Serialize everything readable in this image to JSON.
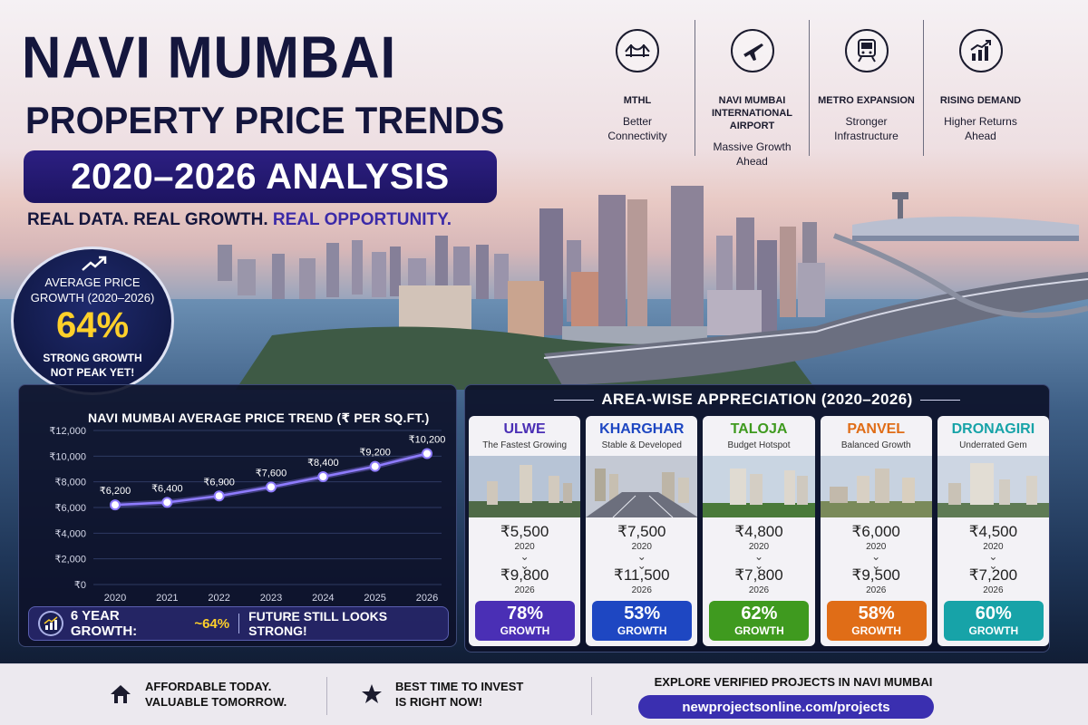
{
  "header": {
    "title_line1": "NAVI MUMBAI",
    "title_line2": "PROPERTY PRICE TRENDS",
    "title_line3": "2020–2026 ANALYSIS",
    "tagline_main": "REAL DATA. REAL GROWTH.",
    "tagline_accent": "REAL OPPORTUNITY."
  },
  "growth_badge": {
    "label_line1": "AVERAGE PRICE",
    "label_line2": "GROWTH (2020–2026)",
    "value": "64%",
    "sub_line1": "STRONG GROWTH",
    "sub_line2": "NOT PEAK YET!",
    "icon": "trend-up-arrow-icon"
  },
  "features": [
    {
      "title": "MTHL",
      "title_line2": "",
      "sub_line1": "Better",
      "sub_line2": "Connectivity",
      "icon": "bridge-icon"
    },
    {
      "title": "NAVI MUMBAI",
      "title_line2": "INTERNATIONAL AIRPORT",
      "sub_line1": "Massive Growth",
      "sub_line2": "Ahead",
      "icon": "airplane-icon"
    },
    {
      "title": "METRO EXPANSION",
      "title_line2": "",
      "sub_line1": "Stronger",
      "sub_line2": "Infrastructure",
      "icon": "metro-train-icon"
    },
    {
      "title": "RISING DEMAND",
      "title_line2": "",
      "sub_line1": "Higher Returns",
      "sub_line2": "Ahead",
      "icon": "rising-bar-chart-icon"
    }
  ],
  "chart_data": {
    "type": "line",
    "title": "NAVI MUMBAI AVERAGE PRICE TREND (₹ PER SQ.FT.)",
    "x": [
      "2020",
      "2021",
      "2022",
      "2023",
      "2024",
      "2025",
      "2026"
    ],
    "values": [
      6200,
      6400,
      6900,
      7600,
      8400,
      9200,
      10200
    ],
    "data_labels": [
      "₹6,200",
      "₹6,400",
      "₹6,900",
      "₹7,600",
      "₹8,400",
      "₹9,200",
      "₹10,200"
    ],
    "yticks": [
      0,
      2000,
      4000,
      6000,
      8000,
      10000,
      12000
    ],
    "ytick_labels": [
      "₹0",
      "₹2,000",
      "₹4,000",
      "₹6,000",
      "₹8,000",
      "₹10,000",
      "₹12,000"
    ],
    "ylim": [
      0,
      12000
    ],
    "grid": true,
    "line_color": "#8f7cff"
  },
  "chart_footer": {
    "label": "6 YEAR GROWTH:",
    "value": "~64%",
    "note": "FUTURE STILL LOOKS STRONG!",
    "icon": "growth-chart-icon"
  },
  "area_section": {
    "title": "AREA-WISE APPRECIATION (2020–2026)",
    "areas": [
      {
        "name": "ULWE",
        "subtitle": "The Fastest Growing",
        "price_2020": "₹5,500",
        "year1": "2020",
        "price_2026": "₹9,800",
        "year2": "2026",
        "growth": "78%",
        "growth_label": "GROWTH",
        "color": "#4a2fb5"
      },
      {
        "name": "KHARGHAR",
        "subtitle": "Stable & Developed",
        "price_2020": "₹7,500",
        "year1": "2020",
        "price_2026": "₹11,500",
        "year2": "2026",
        "growth": "53%",
        "growth_label": "GROWTH",
        "color": "#1e47c2"
      },
      {
        "name": "TALOJA",
        "subtitle": "Budget Hotspot",
        "price_2020": "₹4,800",
        "year1": "2020",
        "price_2026": "₹7,800",
        "year2": "2026",
        "growth": "62%",
        "growth_label": "GROWTH",
        "color": "#3f9a1f"
      },
      {
        "name": "PANVEL",
        "subtitle": "Balanced Growth",
        "price_2020": "₹6,000",
        "year1": "2020",
        "price_2026": "₹9,500",
        "year2": "2026",
        "growth": "58%",
        "growth_label": "GROWTH",
        "color": "#e06d17"
      },
      {
        "name": "DRONAGIRI",
        "subtitle": "Underrated Gem",
        "price_2020": "₹4,500",
        "year1": "2020",
        "price_2026": "₹7,200",
        "year2": "2026",
        "growth": "60%",
        "growth_label": "GROWTH",
        "color": "#17a3a8"
      }
    ]
  },
  "footer": {
    "item1_line1": "AFFORDABLE TODAY.",
    "item1_line2": "VALUABLE TOMORROW.",
    "item1_icon": "house-icon",
    "item2_line1": "BEST TIME TO INVEST",
    "item2_line2": "IS RIGHT NOW!",
    "item2_icon": "star-icon",
    "explore_title": "EXPLORE VERIFIED PROJECTS IN NAVI MUMBAI",
    "link": "newprojectsonline.com/projects"
  }
}
